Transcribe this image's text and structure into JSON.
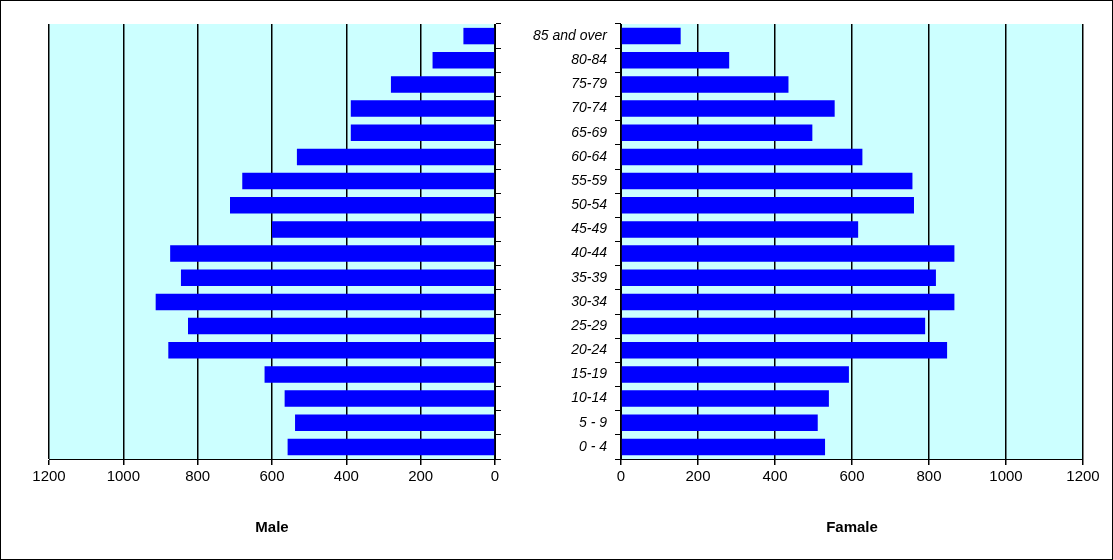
{
  "chart_data": [
    {
      "type": "bar",
      "orientation": "horizontal",
      "xlabel": "Male",
      "categories": [
        null,
        null,
        null,
        null,
        null,
        null,
        null,
        null,
        null,
        null,
        null,
        null,
        null,
        null,
        null,
        null,
        null,
        null
      ],
      "values": [
        85,
        168,
        280,
        388,
        388,
        533,
        680,
        713,
        600,
        874,
        845,
        913,
        826,
        879,
        620,
        566,
        538,
        558
      ],
      "color": "#0000ff",
      "xlim": [
        1200,
        0
      ],
      "xticks": [
        1200,
        1000,
        800,
        600,
        400,
        200,
        0
      ],
      "grid": "x",
      "tick_labels": "x"
    },
    {
      "type": "bar",
      "orientation": "horizontal",
      "xlabel": "Famale",
      "categories": [
        "85 and over",
        "80-84",
        "75-79",
        "70-74",
        "65-69",
        "60-64",
        "55-59",
        "50-54",
        "45-49",
        "40-44",
        "35-39",
        "30-34",
        "25-29",
        "20-24",
        "15-19",
        "10-14",
        "5 - 9",
        "0 - 4"
      ],
      "values": [
        155,
        281,
        435,
        555,
        497,
        627,
        757,
        761,
        616,
        866,
        818,
        866,
        790,
        847,
        592,
        540,
        511,
        530
      ],
      "color": "#0000ff",
      "xlim": [
        0,
        1200
      ],
      "xticks": [
        0,
        200,
        400,
        600,
        800,
        1000,
        1200
      ],
      "grid": "x"
    }
  ]
}
